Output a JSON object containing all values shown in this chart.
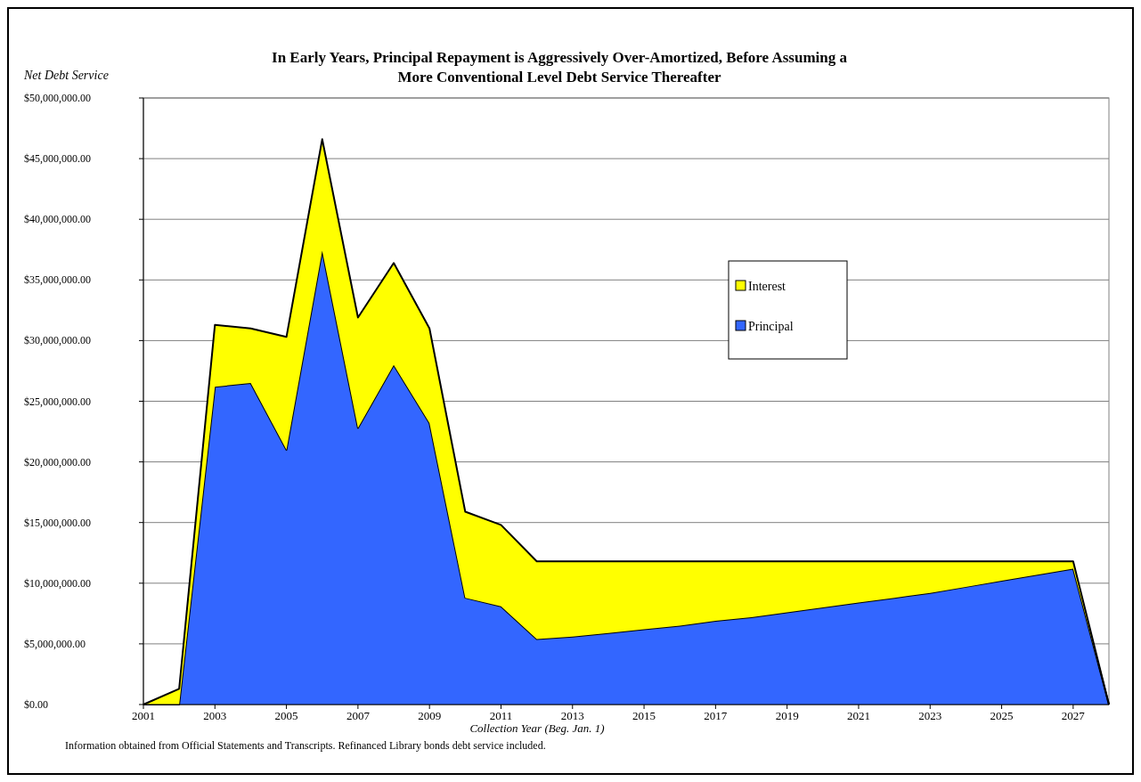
{
  "chart_data": {
    "type": "area",
    "stacked": true,
    "title": "In Early Years, Principal Repayment is Aggressively Over-Amortized, Before Assuming a\nMore Conventional Level Debt Service Thereafter",
    "ylabel": "Net Debt Service",
    "xlabel": "Collection Year (Beg. Jan. 1)",
    "annotations": [
      "Information obtained from Official Statements and Transcripts.  Refinanced Library bonds debt service included."
    ],
    "categories": [
      "2001",
      null,
      "2003",
      null,
      "2005",
      null,
      "2007",
      null,
      "2009",
      null,
      "2011",
      null,
      "2013",
      null,
      "2015",
      null,
      "2017",
      null,
      "2019",
      null,
      "2021",
      null,
      "2023",
      null,
      "2025",
      null,
      "2027",
      null
    ],
    "series": [
      {
        "name": "Principal",
        "color": "#3366ff",
        "values": [
          0,
          0,
          26200000,
          26500000,
          21000000,
          37400000,
          22800000,
          28000000,
          23200000,
          8800000,
          8100000,
          5400000,
          5600000,
          5900000,
          6200000,
          6500000,
          6900000,
          7200000,
          7600000,
          8000000,
          8400000,
          8800000,
          9200000,
          9700000,
          10200000,
          10700000,
          11200000,
          0
        ]
      },
      {
        "name": "Interest",
        "color": "#ffff00",
        "values": [
          0,
          1300000,
          5100000,
          4500000,
          9300000,
          9200000,
          9100000,
          8400000,
          7800000,
          7100000,
          6700000,
          6400000,
          6200000,
          5900000,
          5600000,
          5300000,
          4900000,
          4600000,
          4200000,
          3800000,
          3400000,
          3000000,
          2600000,
          2100000,
          1600000,
          1100000,
          600000,
          0
        ]
      }
    ],
    "ylim": [
      0,
      50000000
    ],
    "yticks": [
      {
        "value": 0,
        "label": "$0.00"
      },
      {
        "value": 5000000,
        "label": "$5,000,000.00"
      },
      {
        "value": 10000000,
        "label": "$10,000,000.00"
      },
      {
        "value": 15000000,
        "label": "$15,000,000.00"
      },
      {
        "value": 20000000,
        "label": "$20,000,000.00"
      },
      {
        "value": 25000000,
        "label": "$25,000,000.00"
      },
      {
        "value": 30000000,
        "label": "$30,000,000.00"
      },
      {
        "value": 35000000,
        "label": "$35,000,000.00"
      },
      {
        "value": 40000000,
        "label": "$40,000,000.00"
      },
      {
        "value": 45000000,
        "label": "$45,000,000.00"
      },
      {
        "value": 50000000,
        "label": "$50,000,000.00"
      }
    ],
    "grid": "y",
    "legend": "right"
  }
}
